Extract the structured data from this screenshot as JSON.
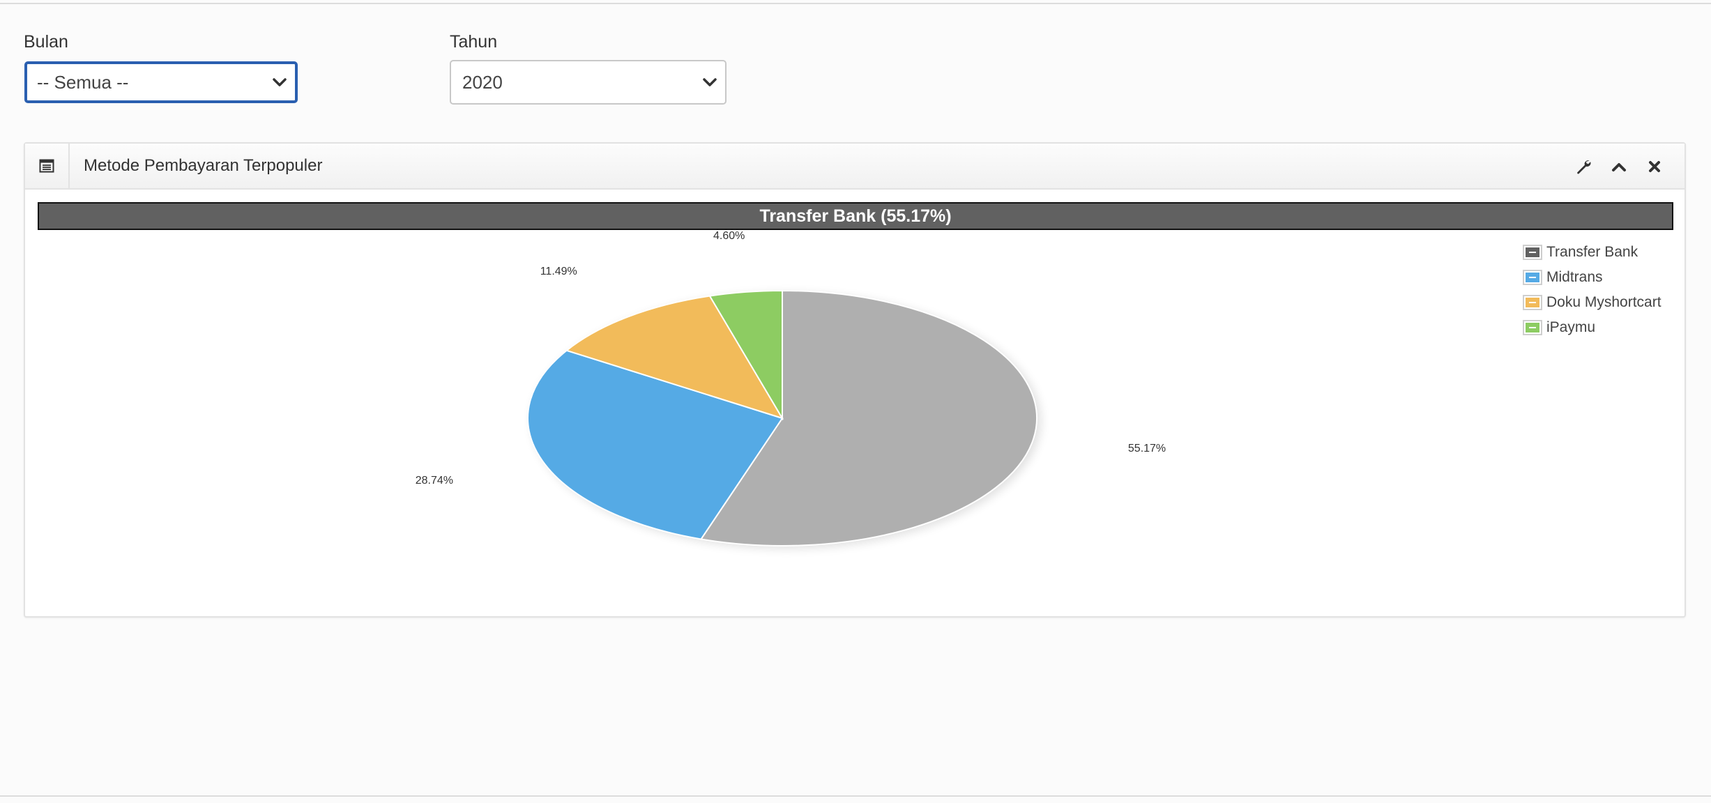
{
  "filters": {
    "month": {
      "label": "Bulan",
      "selected": "-- Semua --"
    },
    "year": {
      "label": "Tahun",
      "selected": "2020"
    }
  },
  "panel": {
    "title": "Metode Pembayaran Terpopuler",
    "header_icon": "list-icon",
    "tools": [
      "wrench-icon",
      "chevron-up-icon",
      "close-icon"
    ]
  },
  "chart_data": {
    "type": "pie",
    "title": "Transfer Bank (55.17%)",
    "legend_position": "top-right",
    "slices": [
      {
        "name": "Transfer Bank",
        "value": 55.17,
        "label": "55.17%",
        "color": "#afafaf",
        "legend_color": "#616161"
      },
      {
        "name": "Midtrans",
        "value": 28.74,
        "label": "28.74%",
        "color": "#55aae5",
        "legend_color": "#55aae5"
      },
      {
        "name": "Doku Myshortcart",
        "value": 11.49,
        "label": "11.49%",
        "color": "#f2bb5a",
        "legend_color": "#f2bb5a"
      },
      {
        "name": "iPaymu",
        "value": 4.6,
        "label": "4.60%",
        "color": "#8dcc62",
        "legend_color": "#8dcc62"
      }
    ]
  }
}
